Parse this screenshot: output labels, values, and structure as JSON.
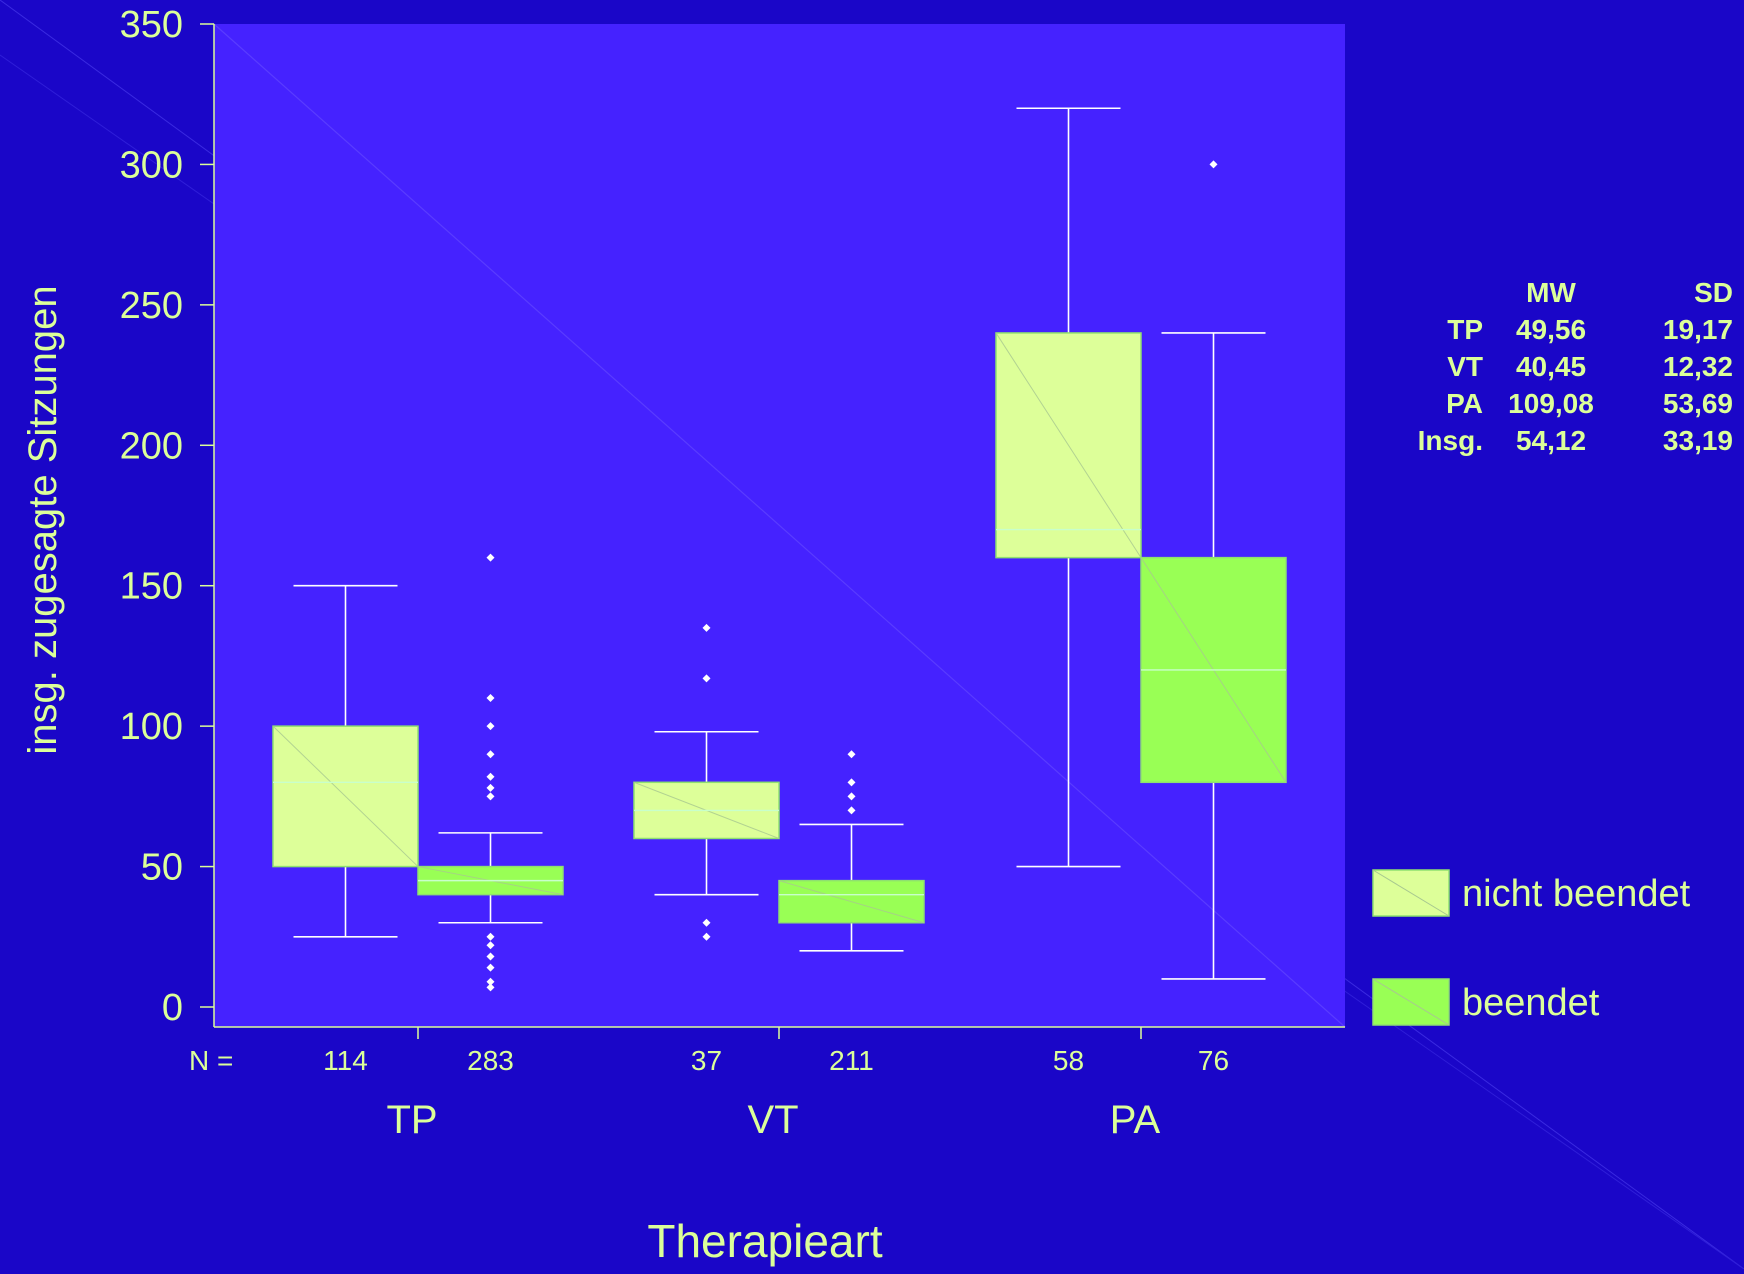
{
  "chart_data": {
    "type": "boxplot",
    "title": "",
    "xlabel": "Therapieart",
    "ylabel": "insg. zugesagte Sitzungen",
    "ylim": [
      0,
      350
    ],
    "yticks": [
      0,
      50,
      100,
      150,
      200,
      250,
      300,
      350
    ],
    "n_prefix": "N =",
    "legend_position": "right",
    "groups": [
      "TP",
      "VT",
      "PA"
    ],
    "series": [
      {
        "name": "nicht beendet",
        "color": "#ddff99"
      },
      {
        "name": "beendet",
        "color": "#99ff55"
      }
    ],
    "boxes": [
      {
        "group": "TP",
        "series": "nicht beendet",
        "n": "114",
        "whisker_low": 25,
        "q1": 50,
        "median": 80,
        "q3": 100,
        "whisker_high": 150,
        "outliers": []
      },
      {
        "group": "TP",
        "series": "beendet",
        "n": "283",
        "whisker_low": 30,
        "q1": 40,
        "median": 45,
        "q3": 50,
        "whisker_high": 62,
        "outliers": [
          7,
          9,
          14,
          18,
          22,
          25,
          75,
          78,
          82,
          90,
          100,
          110,
          160
        ]
      },
      {
        "group": "VT",
        "series": "nicht beendet",
        "n": "37",
        "whisker_low": 40,
        "q1": 60,
        "median": 70,
        "q3": 80,
        "whisker_high": 98,
        "outliers": [
          25,
          30,
          117,
          135
        ]
      },
      {
        "group": "VT",
        "series": "beendet",
        "n": "211",
        "whisker_low": 20,
        "q1": 30,
        "median": 40,
        "q3": 45,
        "whisker_high": 65,
        "outliers": [
          70,
          75,
          80,
          90
        ]
      },
      {
        "group": "PA",
        "series": "nicht beendet",
        "n": "58",
        "whisker_low": 50,
        "q1": 160,
        "median": 170,
        "q3": 240,
        "whisker_high": 320,
        "outliers": []
      },
      {
        "group": "PA",
        "series": "beendet",
        "n": "76",
        "whisker_low": 10,
        "q1": 80,
        "median": 120,
        "q3": 160,
        "whisker_high": 240,
        "outliers": [
          300
        ]
      }
    ],
    "stats_table": {
      "headers": [
        "",
        "MW",
        "SD"
      ],
      "rows": [
        [
          "TP",
          "49,56",
          "19,17"
        ],
        [
          "VT",
          "40,45",
          "12,32"
        ],
        [
          "PA",
          "109,08",
          "53,69"
        ],
        [
          "Insg.",
          "54,12",
          "33,19"
        ]
      ]
    }
  }
}
